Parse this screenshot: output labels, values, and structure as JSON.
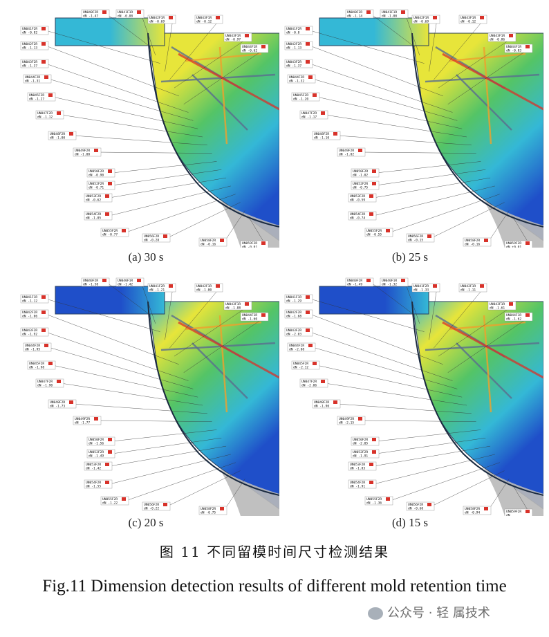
{
  "figure": {
    "panels": [
      {
        "label": "(a) 30 s",
        "tags": [
          {
            "id": "UN040F2R",
            "val": "-1.47"
          },
          {
            "id": "UN041F1R",
            "val": "-0.88"
          },
          {
            "id": "UN041F2R",
            "val": "-0.82"
          },
          {
            "id": "UN042F1R",
            "val": "-0.69"
          },
          {
            "id": "UN043F1R",
            "val": "-0.12"
          },
          {
            "id": "UN043F1R",
            "val": "-0.97"
          },
          {
            "id": "UN042F2R",
            "val": "-1.13"
          },
          {
            "id": "UN044F1R",
            "val": "-0.62"
          },
          {
            "id": "UN043F2R",
            "val": "-1.37"
          },
          {
            "id": "UN044F2R",
            "val": "-1.31"
          },
          {
            "id": "UN045F2R",
            "val": "-1.27"
          },
          {
            "id": "UN047F2R",
            "val": "-1.12"
          },
          {
            "id": "UN048F2R",
            "val": "-1.00"
          },
          {
            "id": "UN049F2R",
            "val": "-1.00"
          },
          {
            "id": "UN050F2R",
            "val": "-0.90"
          },
          {
            "id": "UN052F2R",
            "val": "-0.71"
          },
          {
            "id": "UN053F2R",
            "val": "-0.62"
          },
          {
            "id": "UN054F2R",
            "val": "-1.05"
          },
          {
            "id": "UN055F2R",
            "val": "-0.77"
          },
          {
            "id": "UN056F2R",
            "val": "-0.28"
          },
          {
            "id": "UN058F2R",
            "val": "-0.16"
          },
          {
            "id": "UN059F2R",
            "val": "-0.01"
          }
        ]
      },
      {
        "label": "(b) 25 s",
        "tags": [
          {
            "id": "UN040F2R",
            "val": "-1.14"
          },
          {
            "id": "UN041F1R",
            "val": "-1.00"
          },
          {
            "id": "UN041F2R",
            "val": "-0.8"
          },
          {
            "id": "UN042F1R",
            "val": "-0.69"
          },
          {
            "id": "UN043F1R",
            "val": "-0.12"
          },
          {
            "id": "UN043F1R",
            "val": "-0.86"
          },
          {
            "id": "UN042F2R",
            "val": "-1.13"
          },
          {
            "id": "UN044F1R",
            "val": "-0.83"
          },
          {
            "id": "UN043F2R",
            "val": "-1.37"
          },
          {
            "id": "UN044F2R",
            "val": "-1.32"
          },
          {
            "id": "UN045F2R",
            "val": "-1.20"
          },
          {
            "id": "UN047F2R",
            "val": "-1.17"
          },
          {
            "id": "UN048F2R",
            "val": "-1.10"
          },
          {
            "id": "UN049F2R",
            "val": "-1.02"
          },
          {
            "id": "UN050F2R",
            "val": "-1.02"
          },
          {
            "id": "UN052F2R",
            "val": "-0.75"
          },
          {
            "id": "UN053F2R",
            "val": "-0.59"
          },
          {
            "id": "UN054F2R",
            "val": "-0.74"
          },
          {
            "id": "UN055F2R",
            "val": "-0.55"
          },
          {
            "id": "UN056F2R",
            "val": "-0.15"
          },
          {
            "id": "UN058F2R",
            "val": "-0.16"
          },
          {
            "id": "UN059F2R",
            "val": "+0.01"
          }
        ]
      },
      {
        "label": "(c) 20 s",
        "tags": [
          {
            "id": "UN040F2R",
            "val": "-1.58"
          },
          {
            "id": "UN040F1R",
            "val": "-1.42"
          },
          {
            "id": "UN041F1R",
            "val": "-1.12"
          },
          {
            "id": "UN041F2R",
            "val": "-1.21"
          },
          {
            "id": "UN042F1R",
            "val": "-1.00"
          },
          {
            "id": "UN043F1R",
            "val": "-1.88"
          },
          {
            "id": "UN042F2R",
            "val": "-1.06"
          },
          {
            "id": "UN044F1R",
            "val": "-1.60"
          },
          {
            "id": "UN043F2R",
            "val": "-1.92"
          },
          {
            "id": "UN044F2R",
            "val": "-1.95"
          },
          {
            "id": "UN045F2R",
            "val": "-1.98"
          },
          {
            "id": "UN047F2R",
            "val": "-1.90"
          },
          {
            "id": "UN048F2R",
            "val": "-1.73"
          },
          {
            "id": "UN049F2R",
            "val": "-1.77"
          },
          {
            "id": "UN050F2R",
            "val": "-1.56"
          },
          {
            "id": "UN052F2R",
            "val": "-1.49"
          },
          {
            "id": "UN053F2R",
            "val": "-1.42"
          },
          {
            "id": "UN054F2R",
            "val": "-1.55"
          },
          {
            "id": "UN055F2R",
            "val": "-1.22"
          },
          {
            "id": "UN056F2R",
            "val": "-0.22"
          },
          {
            "id": "UN058F2R",
            "val": "-0.75"
          }
        ]
      },
      {
        "label": "(d) 15 s",
        "tags": [
          {
            "id": "UN040F2R",
            "val": "-1.49"
          },
          {
            "id": "UN040F1R",
            "val": "-1.32"
          },
          {
            "id": "UN041F1R",
            "val": "-1.29"
          },
          {
            "id": "UN041F2R",
            "val": "-1.33"
          },
          {
            "id": "UN042F1R",
            "val": "-1.11"
          },
          {
            "id": "UN043F1R",
            "val": "-1.61"
          },
          {
            "id": "UN042F2R",
            "val": "-1.68"
          },
          {
            "id": "UN044F1R",
            "val": "-1.62"
          },
          {
            "id": "UN043F2R",
            "val": "-2.03"
          },
          {
            "id": "UN044F2R",
            "val": "-2.08"
          },
          {
            "id": "UN045F2R",
            "val": "-2.12"
          },
          {
            "id": "UN047F2R",
            "val": "-2.06"
          },
          {
            "id": "UN048F2R",
            "val": "-1.90"
          },
          {
            "id": "UN049F2R",
            "val": "-2.15"
          },
          {
            "id": "UN050F2R",
            "val": "-2.05"
          },
          {
            "id": "UN052F2R",
            "val": "-1.91"
          },
          {
            "id": "UN053F2R",
            "val": "-1.83"
          },
          {
            "id": "UN054F2R",
            "val": "-1.91"
          },
          {
            "id": "UN055F2R",
            "val": "-1.36"
          },
          {
            "id": "UN056F2R",
            "val": "-0.60"
          },
          {
            "id": "UN058F2R",
            "val": "-0.94"
          },
          {
            "id": "UN059F2R",
            "val": ""
          }
        ]
      }
    ],
    "caption_cn": "图 11   不同留模时间尺寸检测结果",
    "caption_en": "Fig.11   Dimension detection results of different mold retention time",
    "watermark": "公众号 · 轻    属技术"
  },
  "colors": {
    "blue": "#1f4fc9",
    "cyan": "#34b8d6",
    "green": "#54c466",
    "yellow": "#e7e53a",
    "orange": "#f0a12c",
    "red": "#d8322a",
    "grey": "#b9b9b9"
  }
}
